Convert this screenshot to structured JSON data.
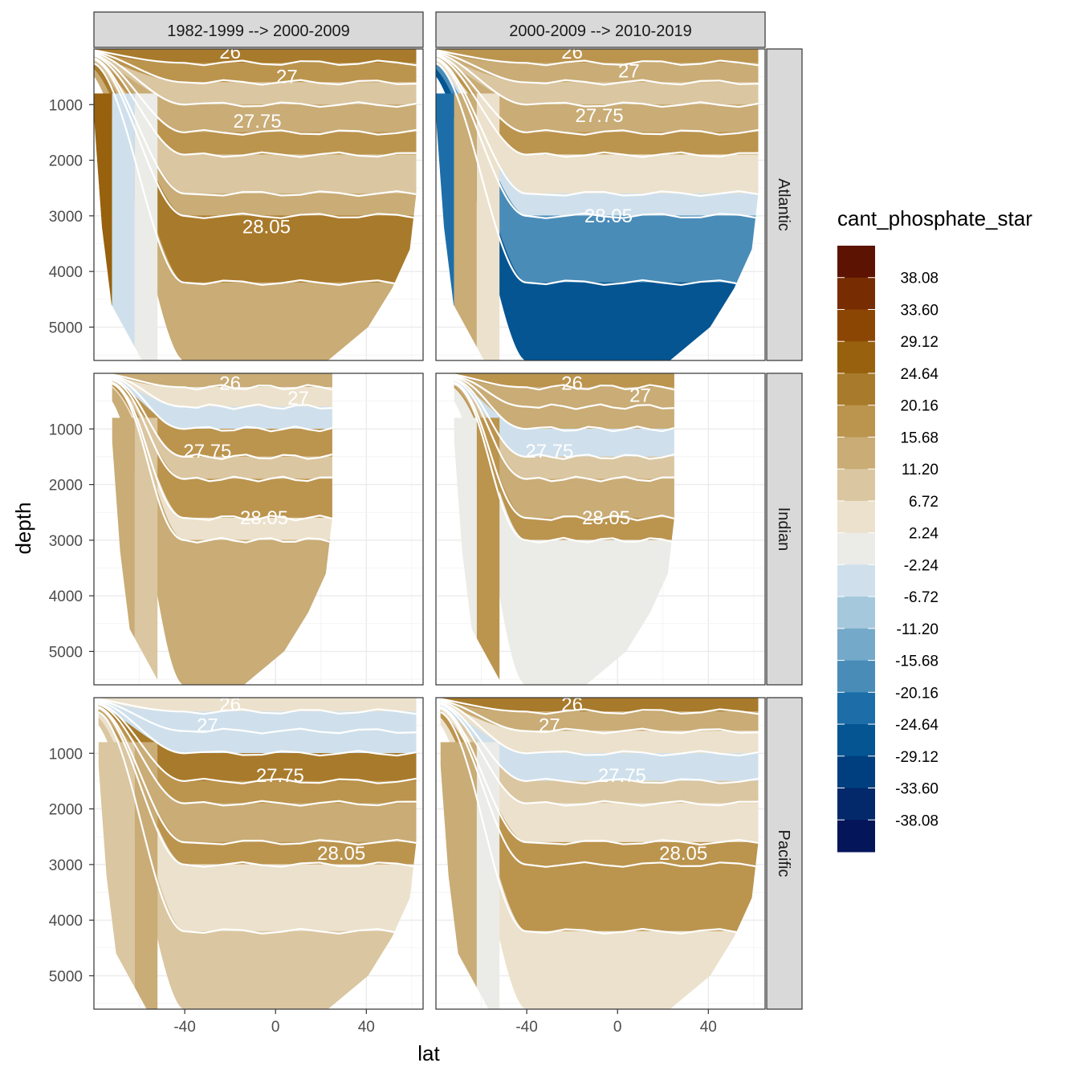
{
  "chart_data": {
    "type": "heatmap",
    "title": "",
    "xlabel": "lat",
    "ylabel": "depth",
    "x_range": [
      -80,
      65
    ],
    "y_range": [
      0,
      5600
    ],
    "y_reversed": true,
    "x_ticks": [
      -40,
      0,
      40
    ],
    "y_ticks": [
      1000,
      2000,
      3000,
      4000,
      5000
    ],
    "grid": true,
    "columns": [
      "1982-1999 --> 2000-2009",
      "2000-2009 --> 2010-2019"
    ],
    "rows": [
      "Atlantic",
      "Indian",
      "Pacific"
    ],
    "contour_labels": [
      "26",
      "27",
      "27.75",
      "28.05"
    ],
    "legend": {
      "title": "cant_phosphate_star",
      "position": "right",
      "breaks": [
        "38.08",
        "33.60",
        "29.12",
        "24.64",
        "20.16",
        "15.68",
        "11.20",
        "6.72",
        "2.24",
        "-2.24",
        "-6.72",
        "-11.20",
        "-15.68",
        "-20.16",
        "-24.64",
        "-29.12",
        "-33.60",
        "-38.08"
      ],
      "colors": [
        "#5c1302",
        "#772c02",
        "#8c4604",
        "#97610e",
        "#a87a2b",
        "#bb944e",
        "#c9ac76",
        "#dac6a0",
        "#ece1cc",
        "#ebebe7",
        "#cfe0ec",
        "#a5c8dc",
        "#74a9c9",
        "#4a8cb8",
        "#1d6ea8",
        "#045592",
        "#003f7f",
        "#03296a",
        "#04155a"
      ]
    },
    "panels": [
      {
        "row": "Atlantic",
        "column": "1982-1999 --> 2000-2009",
        "lat_min": -80,
        "lat_max": 62,
        "max_depth": 5600,
        "bands": [
          {
            "top": 0,
            "bottom": 250,
            "value": 24
          },
          {
            "top": 250,
            "bottom": 600,
            "value": 16
          },
          {
            "top": 600,
            "bottom": 1000,
            "value": 10
          },
          {
            "top": 1000,
            "bottom": 1500,
            "value": 14
          },
          {
            "top": 1500,
            "bottom": 1900,
            "value": 20
          },
          {
            "top": 1900,
            "bottom": 2600,
            "value": 9
          },
          {
            "top": 2600,
            "bottom": 3000,
            "value": 15
          },
          {
            "top": 3000,
            "bottom": 4200,
            "value": 24
          },
          {
            "top": 4200,
            "bottom": 5600,
            "value": 13
          }
        ],
        "south": [
          {
            "lat_end": -72,
            "value": 26
          },
          {
            "lat_end": -62,
            "value": -4
          },
          {
            "lat_end": -52,
            "value": 0
          }
        ],
        "isopycnals": [
          {
            "label": "26",
            "depth": 60,
            "lat": -20
          },
          {
            "label": "27",
            "depth": 500,
            "lat": 5
          },
          {
            "label": "27.75",
            "depth": 1300,
            "lat": -8
          },
          {
            "label": "28.05",
            "depth": 3200,
            "lat": -4
          }
        ]
      },
      {
        "row": "Atlantic",
        "column": "2000-2009 --> 2010-2019",
        "lat_min": -80,
        "lat_max": 62,
        "max_depth": 5600,
        "bands": [
          {
            "top": 0,
            "bottom": 250,
            "value": 18
          },
          {
            "top": 250,
            "bottom": 600,
            "value": 12
          },
          {
            "top": 600,
            "bottom": 1000,
            "value": 8
          },
          {
            "top": 1000,
            "bottom": 1500,
            "value": 13
          },
          {
            "top": 1500,
            "bottom": 1900,
            "value": 18
          },
          {
            "top": 1900,
            "bottom": 2600,
            "value": 5
          },
          {
            "top": 2600,
            "bottom": 3000,
            "value": -4
          },
          {
            "top": 3000,
            "bottom": 4200,
            "value": -16
          },
          {
            "top": 4200,
            "bottom": 5600,
            "value": -28
          }
        ],
        "south": [
          {
            "lat_end": -72,
            "value": -22
          },
          {
            "lat_end": -62,
            "value": 14
          },
          {
            "lat_end": -52,
            "value": 6
          }
        ],
        "isopycnals": [
          {
            "label": "26",
            "depth": 60,
            "lat": -20
          },
          {
            "label": "27",
            "depth": 400,
            "lat": 5
          },
          {
            "label": "27.75",
            "depth": 1200,
            "lat": -8
          },
          {
            "label": "28.05",
            "depth": 3000,
            "lat": -4
          }
        ]
      },
      {
        "row": "Indian",
        "column": "1982-1999 --> 2000-2009",
        "lat_min": -72,
        "lat_max": 25,
        "max_depth": 5600,
        "bands": [
          {
            "top": 0,
            "bottom": 250,
            "value": 14
          },
          {
            "top": 250,
            "bottom": 600,
            "value": 3
          },
          {
            "top": 600,
            "bottom": 1000,
            "value": -4
          },
          {
            "top": 1000,
            "bottom": 1500,
            "value": 20
          },
          {
            "top": 1500,
            "bottom": 1900,
            "value": 10
          },
          {
            "top": 1900,
            "bottom": 2600,
            "value": 18
          },
          {
            "top": 2600,
            "bottom": 3000,
            "value": 6
          },
          {
            "top": 3000,
            "bottom": 5600,
            "value": 12
          }
        ],
        "south": [
          {
            "lat_end": -62,
            "value": 14
          },
          {
            "lat_end": -52,
            "value": 10
          }
        ],
        "isopycnals": [
          {
            "label": "26",
            "depth": 180,
            "lat": -20
          },
          {
            "label": "27",
            "depth": 450,
            "lat": 10
          },
          {
            "label": "27.75",
            "depth": 1400,
            "lat": -30
          },
          {
            "label": "28.05",
            "depth": 2600,
            "lat": -5
          }
        ]
      },
      {
        "row": "Indian",
        "column": "2000-2009 --> 2010-2019",
        "lat_min": -72,
        "lat_max": 25,
        "max_depth": 5600,
        "bands": [
          {
            "top": 0,
            "bottom": 250,
            "value": 18
          },
          {
            "top": 250,
            "bottom": 600,
            "value": 12
          },
          {
            "top": 600,
            "bottom": 1000,
            "value": 14
          },
          {
            "top": 1000,
            "bottom": 1500,
            "value": -5
          },
          {
            "top": 1500,
            "bottom": 1900,
            "value": 10
          },
          {
            "top": 1900,
            "bottom": 2600,
            "value": 15
          },
          {
            "top": 2600,
            "bottom": 3000,
            "value": 20
          },
          {
            "top": 3000,
            "bottom": 5600,
            "value": 0
          }
        ],
        "south": [
          {
            "lat_end": -62,
            "value": 0
          },
          {
            "lat_end": -52,
            "value": 16
          }
        ],
        "isopycnals": [
          {
            "label": "26",
            "depth": 180,
            "lat": -20
          },
          {
            "label": "27",
            "depth": 400,
            "lat": 10
          },
          {
            "label": "27.75",
            "depth": 1400,
            "lat": -30
          },
          {
            "label": "28.05",
            "depth": 2600,
            "lat": -5
          }
        ]
      },
      {
        "row": "Pacific",
        "column": "1982-1999 --> 2000-2009",
        "lat_min": -78,
        "lat_max": 62,
        "max_depth": 5600,
        "bands": [
          {
            "top": 0,
            "bottom": 250,
            "value": 4
          },
          {
            "top": 250,
            "bottom": 600,
            "value": -3
          },
          {
            "top": 600,
            "bottom": 1000,
            "value": -6
          },
          {
            "top": 1000,
            "bottom": 1500,
            "value": 22
          },
          {
            "top": 1500,
            "bottom": 1900,
            "value": 16
          },
          {
            "top": 1900,
            "bottom": 2600,
            "value": 13
          },
          {
            "top": 2600,
            "bottom": 3000,
            "value": 16
          },
          {
            "top": 3000,
            "bottom": 4200,
            "value": 6
          },
          {
            "top": 4200,
            "bottom": 5600,
            "value": 11
          }
        ],
        "south": [
          {
            "lat_end": -62,
            "value": 11
          },
          {
            "lat_end": -52,
            "value": 13
          }
        ],
        "isopycnals": [
          {
            "label": "26",
            "depth": 120,
            "lat": -20
          },
          {
            "label": "27",
            "depth": 500,
            "lat": -30
          },
          {
            "label": "27.75",
            "depth": 1400,
            "lat": 2
          },
          {
            "label": "28.05",
            "depth": 2800,
            "lat": 29
          }
        ]
      },
      {
        "row": "Pacific",
        "column": "2000-2009 --> 2010-2019",
        "lat_min": -78,
        "lat_max": 62,
        "max_depth": 5600,
        "bands": [
          {
            "top": 0,
            "bottom": 250,
            "value": 24
          },
          {
            "top": 250,
            "bottom": 600,
            "value": 14
          },
          {
            "top": 600,
            "bottom": 1000,
            "value": 4
          },
          {
            "top": 1000,
            "bottom": 1500,
            "value": -6
          },
          {
            "top": 1500,
            "bottom": 1900,
            "value": 10
          },
          {
            "top": 1900,
            "bottom": 2600,
            "value": 6
          },
          {
            "top": 2600,
            "bottom": 3000,
            "value": 20
          },
          {
            "top": 3000,
            "bottom": 4200,
            "value": 16
          },
          {
            "top": 4200,
            "bottom": 5600,
            "value": 4
          }
        ],
        "south": [
          {
            "lat_end": -62,
            "value": 14
          },
          {
            "lat_end": -52,
            "value": 0
          }
        ],
        "isopycnals": [
          {
            "label": "26",
            "depth": 120,
            "lat": -20
          },
          {
            "label": "27",
            "depth": 500,
            "lat": -30
          },
          {
            "label": "27.75",
            "depth": 1400,
            "lat": 2
          },
          {
            "label": "28.05",
            "depth": 2800,
            "lat": 29
          }
        ]
      }
    ]
  }
}
